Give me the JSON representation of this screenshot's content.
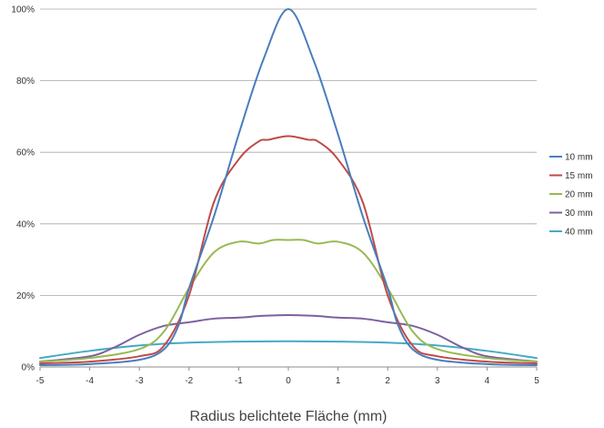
{
  "chart_data": {
    "type": "line",
    "title": "",
    "xlabel": "Radius belichtete Fläche (mm)",
    "ylabel": "",
    "xlim": [
      -5,
      5
    ],
    "ylim": [
      0,
      100
    ],
    "x_ticks": [
      "-5",
      "-4",
      "-3",
      "-2",
      "-1",
      "0",
      "1",
      "2",
      "3",
      "4",
      "5"
    ],
    "y_ticks": [
      "0%",
      "20%",
      "40%",
      "60%",
      "80%",
      "100%"
    ],
    "grid": "horizontal",
    "legend": "right",
    "series": [
      {
        "name": "10 mm",
        "color": "#4A7EBB",
        "points": [
          [
            -5,
            0.5
          ],
          [
            -4,
            0.8
          ],
          [
            -3,
            2
          ],
          [
            -2.5,
            5
          ],
          [
            -2.2,
            12
          ],
          [
            -2,
            22
          ],
          [
            -1.5,
            42
          ],
          [
            -1,
            65
          ],
          [
            -0.5,
            86
          ],
          [
            0,
            100
          ],
          [
            0.5,
            86
          ],
          [
            1,
            65
          ],
          [
            1.5,
            42
          ],
          [
            2,
            22
          ],
          [
            2.2,
            12
          ],
          [
            2.5,
            5
          ],
          [
            3,
            2
          ],
          [
            4,
            0.8
          ],
          [
            5,
            0.5
          ]
        ]
      },
      {
        "name": "15 mm",
        "color": "#BE4B48",
        "points": [
          [
            -5,
            1
          ],
          [
            -4,
            1.5
          ],
          [
            -3,
            3
          ],
          [
            -2.5,
            6
          ],
          [
            -2,
            20
          ],
          [
            -1.5,
            46
          ],
          [
            -1,
            58
          ],
          [
            -0.6,
            63
          ],
          [
            -0.4,
            63.5
          ],
          [
            0,
            64.5
          ],
          [
            0.4,
            63.5
          ],
          [
            0.6,
            63
          ],
          [
            1,
            58
          ],
          [
            1.5,
            46
          ],
          [
            2,
            20
          ],
          [
            2.5,
            6
          ],
          [
            3,
            3
          ],
          [
            4,
            1.5
          ],
          [
            5,
            1
          ]
        ]
      },
      {
        "name": "20 mm",
        "color": "#98B954",
        "points": [
          [
            -5,
            1.5
          ],
          [
            -4,
            2.5
          ],
          [
            -3,
            5
          ],
          [
            -2.5,
            10
          ],
          [
            -2,
            22
          ],
          [
            -1.5,
            32
          ],
          [
            -1,
            35
          ],
          [
            -0.6,
            34.5
          ],
          [
            -0.3,
            35.5
          ],
          [
            0,
            35.5
          ],
          [
            0.3,
            35.5
          ],
          [
            0.6,
            34.5
          ],
          [
            1,
            35
          ],
          [
            1.5,
            32
          ],
          [
            2,
            22
          ],
          [
            2.5,
            10
          ],
          [
            3,
            5
          ],
          [
            4,
            2.5
          ],
          [
            5,
            1.5
          ]
        ]
      },
      {
        "name": "30 mm",
        "color": "#7D60A0",
        "points": [
          [
            -5,
            1.5
          ],
          [
            -4,
            3
          ],
          [
            -3.5,
            5.5
          ],
          [
            -3,
            9
          ],
          [
            -2.5,
            11.5
          ],
          [
            -2,
            12.5
          ],
          [
            -1.5,
            13.5
          ],
          [
            -1,
            13.8
          ],
          [
            -0.5,
            14.3
          ],
          [
            0,
            14.5
          ],
          [
            0.5,
            14.3
          ],
          [
            1,
            13.8
          ],
          [
            1.5,
            13.5
          ],
          [
            2,
            12.5
          ],
          [
            2.5,
            11.5
          ],
          [
            3,
            9
          ],
          [
            3.5,
            5.5
          ],
          [
            4,
            3
          ],
          [
            5,
            1.5
          ]
        ]
      },
      {
        "name": "40 mm",
        "color": "#46AAC5",
        "points": [
          [
            -5,
            2.5
          ],
          [
            -4,
            4.5
          ],
          [
            -3,
            6
          ],
          [
            -2,
            6.8
          ],
          [
            -1,
            7.1
          ],
          [
            0,
            7.2
          ],
          [
            1,
            7.1
          ],
          [
            2,
            6.8
          ],
          [
            3,
            6
          ],
          [
            4,
            4.5
          ],
          [
            5,
            2.5
          ]
        ]
      }
    ]
  }
}
